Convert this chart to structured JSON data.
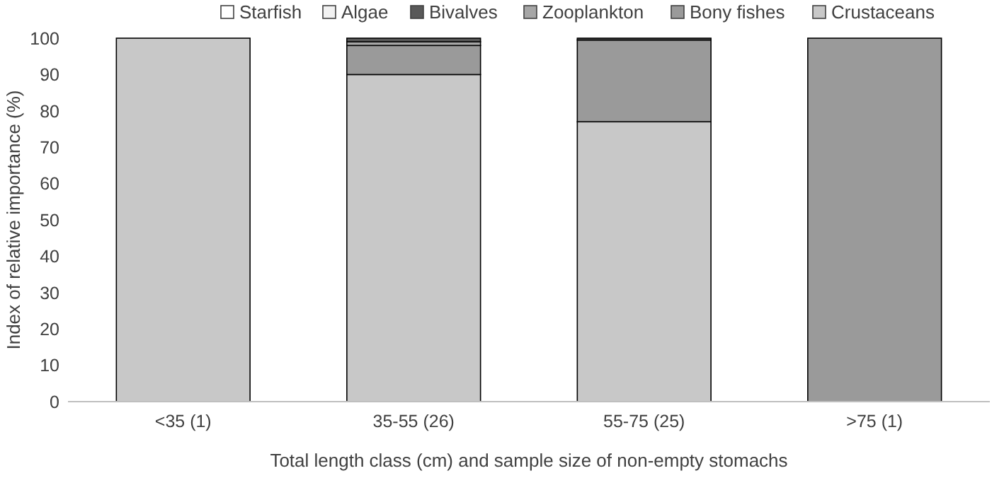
{
  "chart_data": {
    "type": "bar",
    "stacked": true,
    "xlabel": "Total length class (cm) and sample size of non-empty stomachs",
    "ylabel": "Index of relative importance (%)",
    "categories": [
      "<35 (1)",
      "35-55 (26)",
      "55-75 (25)",
      ">75 (1)"
    ],
    "ylim": [
      0,
      100
    ],
    "yticks": [
      0,
      10,
      20,
      30,
      40,
      50,
      60,
      70,
      80,
      90,
      100
    ],
    "legend": "top",
    "series": [
      {
        "name": "Crustaceans",
        "color": "#c8c8c8",
        "values": [
          100,
          90,
          77,
          0
        ]
      },
      {
        "name": "Bony fishes",
        "color": "#9a9a9a",
        "values": [
          0,
          8,
          22.5,
          100
        ]
      },
      {
        "name": "Zooplankton",
        "color": "#a6a6a6",
        "values": [
          0,
          1,
          0,
          0
        ]
      },
      {
        "name": "Bivalves",
        "color": "#595959",
        "values": [
          0,
          1,
          0.5,
          0
        ]
      },
      {
        "name": "Algae",
        "color": "#f2f2f2",
        "values": [
          0,
          0,
          0,
          0
        ]
      },
      {
        "name": "Starfish",
        "color": "#ffffff",
        "values": [
          0,
          0,
          0,
          0
        ]
      }
    ]
  }
}
